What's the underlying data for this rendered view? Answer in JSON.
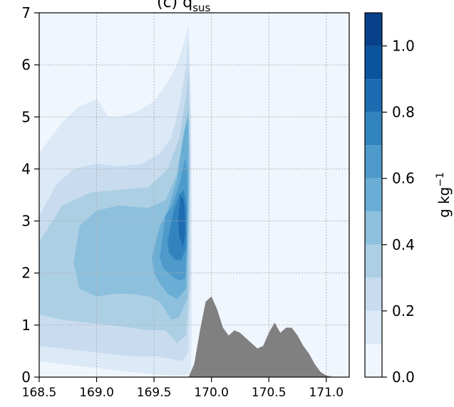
{
  "chart_data": {
    "type": "contour",
    "title": "(c) q",
    "title_subscript": "sus",
    "xlabel": "",
    "ylabel": "",
    "xlim": [
      168.5,
      171.2
    ],
    "ylim": [
      0,
      7
    ],
    "x_ticks": [
      "168.5",
      "169.0",
      "169.5",
      "170.0",
      "170.5",
      "171.0"
    ],
    "y_ticks": [
      "0",
      "1",
      "2",
      "3",
      "4",
      "5",
      "6",
      "7"
    ],
    "grid": true,
    "colorbar": {
      "label": "g kg",
      "label_superscript": "−1",
      "levels": [
        0.0,
        0.1,
        0.2,
        0.3,
        0.4,
        0.5,
        0.6,
        0.7,
        0.8,
        0.9,
        1.0,
        1.1
      ],
      "tick_labels": [
        "0.0",
        "0.2",
        "0.4",
        "0.6",
        "0.8",
        "1.0"
      ],
      "colors": [
        "#f0f6fd",
        "#dce9f7",
        "#c9dcef",
        "#adcfe4",
        "#8dc0dd",
        "#6aaed6",
        "#4d9acb",
        "#3284bf",
        "#1d6bb0",
        "#0b559f",
        "#08408a"
      ]
    },
    "contours": [
      {
        "level": 0.1,
        "x": [
          168.5,
          168.5,
          168.7,
          168.85,
          169.0,
          169.05,
          169.1,
          169.2,
          169.35,
          169.5,
          169.6,
          169.7,
          169.77,
          169.8,
          169.82,
          169.83,
          169.83,
          169.82,
          169.8,
          169.7,
          169.5,
          169.3,
          169.1,
          168.9,
          168.7,
          168.5
        ],
        "y": [
          0,
          4.3,
          4.9,
          5.2,
          5.35,
          5.2,
          5.0,
          5.0,
          5.1,
          5.3,
          5.6,
          6.0,
          6.5,
          6.8,
          5.5,
          3.0,
          1.0,
          0.15,
          0.05,
          0.03,
          0.05,
          0.1,
          0.15,
          0.2,
          0.25,
          0.3
        ]
      },
      {
        "level": 0.2,
        "x": [
          168.5,
          168.5,
          168.65,
          168.8,
          169.0,
          169.2,
          169.4,
          169.55,
          169.65,
          169.72,
          169.78,
          169.8,
          169.82,
          169.82,
          169.8,
          169.75,
          169.65,
          169.5,
          169.3,
          169.1,
          168.9,
          168.7,
          168.5
        ],
        "y": [
          0.6,
          3.1,
          3.7,
          4.0,
          4.1,
          4.05,
          4.1,
          4.3,
          4.6,
          5.2,
          6.0,
          6.5,
          5.0,
          2.0,
          0.5,
          0.3,
          0.35,
          0.4,
          0.4,
          0.45,
          0.5,
          0.55,
          0.6
        ]
      },
      {
        "level": 0.3,
        "x": [
          168.5,
          168.5,
          168.7,
          168.95,
          169.2,
          169.45,
          169.62,
          169.72,
          169.78,
          169.8,
          169.81,
          169.81,
          169.78,
          169.7,
          169.6,
          169.45,
          169.3,
          169.1,
          168.9,
          168.7,
          168.5
        ],
        "y": [
          1.2,
          2.6,
          3.3,
          3.55,
          3.6,
          3.65,
          4.0,
          4.6,
          5.4,
          5.9,
          4.5,
          1.8,
          0.8,
          0.65,
          0.9,
          0.9,
          0.95,
          1.0,
          1.05,
          1.1,
          1.2
        ]
      },
      {
        "level": 0.4,
        "x": [
          168.8,
          168.85,
          169.0,
          169.2,
          169.45,
          169.6,
          169.7,
          169.76,
          169.8,
          169.81,
          169.79,
          169.72,
          169.65,
          169.55,
          169.45,
          169.3,
          169.15,
          169.0,
          168.85,
          168.8
        ],
        "y": [
          2.2,
          2.9,
          3.2,
          3.3,
          3.25,
          3.4,
          3.9,
          4.7,
          5.2,
          4.0,
          1.5,
          1.15,
          1.1,
          1.45,
          1.55,
          1.6,
          1.6,
          1.55,
          1.7,
          2.2
        ]
      },
      {
        "level": 0.5,
        "x": [
          169.48,
          169.55,
          169.62,
          169.7,
          169.76,
          169.8,
          169.8,
          169.78,
          169.7,
          169.62,
          169.55,
          169.5,
          169.48
        ],
        "y": [
          2.3,
          2.9,
          3.2,
          3.8,
          4.7,
          5.0,
          3.5,
          1.7,
          1.5,
          1.6,
          1.8,
          2.0,
          2.3
        ]
      },
      {
        "level": 0.6,
        "x": [
          169.55,
          169.6,
          169.66,
          169.72,
          169.77,
          169.79,
          169.79,
          169.77,
          169.72,
          169.65,
          169.58,
          169.55
        ],
        "y": [
          2.3,
          3.1,
          3.3,
          3.7,
          4.2,
          4.0,
          2.6,
          1.9,
          1.85,
          1.95,
          2.1,
          2.3
        ]
      },
      {
        "level": 0.7,
        "x": [
          169.62,
          169.67,
          169.72,
          169.76,
          169.78,
          169.78,
          169.74,
          169.68,
          169.63,
          169.62
        ],
        "y": [
          2.6,
          3.2,
          3.5,
          3.6,
          3.3,
          2.5,
          2.25,
          2.25,
          2.4,
          2.6
        ]
      },
      {
        "level": 0.8,
        "x": [
          169.71,
          169.73,
          169.76,
          169.77,
          169.77,
          169.75,
          169.72,
          169.71
        ],
        "y": [
          3.0,
          3.5,
          3.4,
          3.1,
          2.7,
          2.5,
          2.7,
          3.0
        ]
      }
    ],
    "terrain": {
      "color": "#808080",
      "x": [
        169.8,
        169.85,
        169.9,
        169.95,
        170.0,
        170.05,
        170.1,
        170.15,
        170.2,
        170.25,
        170.3,
        170.35,
        170.4,
        170.45,
        170.5,
        170.55,
        170.6,
        170.65,
        170.7,
        170.75,
        170.8,
        170.85,
        170.9,
        170.95,
        171.0,
        171.05,
        171.1,
        171.15
      ],
      "y": [
        0,
        0.25,
        0.9,
        1.45,
        1.55,
        1.3,
        0.95,
        0.8,
        0.9,
        0.85,
        0.75,
        0.65,
        0.55,
        0.6,
        0.85,
        1.05,
        0.85,
        0.95,
        0.95,
        0.8,
        0.6,
        0.45,
        0.25,
        0.1,
        0.03,
        0.01,
        0,
        0
      ]
    }
  }
}
